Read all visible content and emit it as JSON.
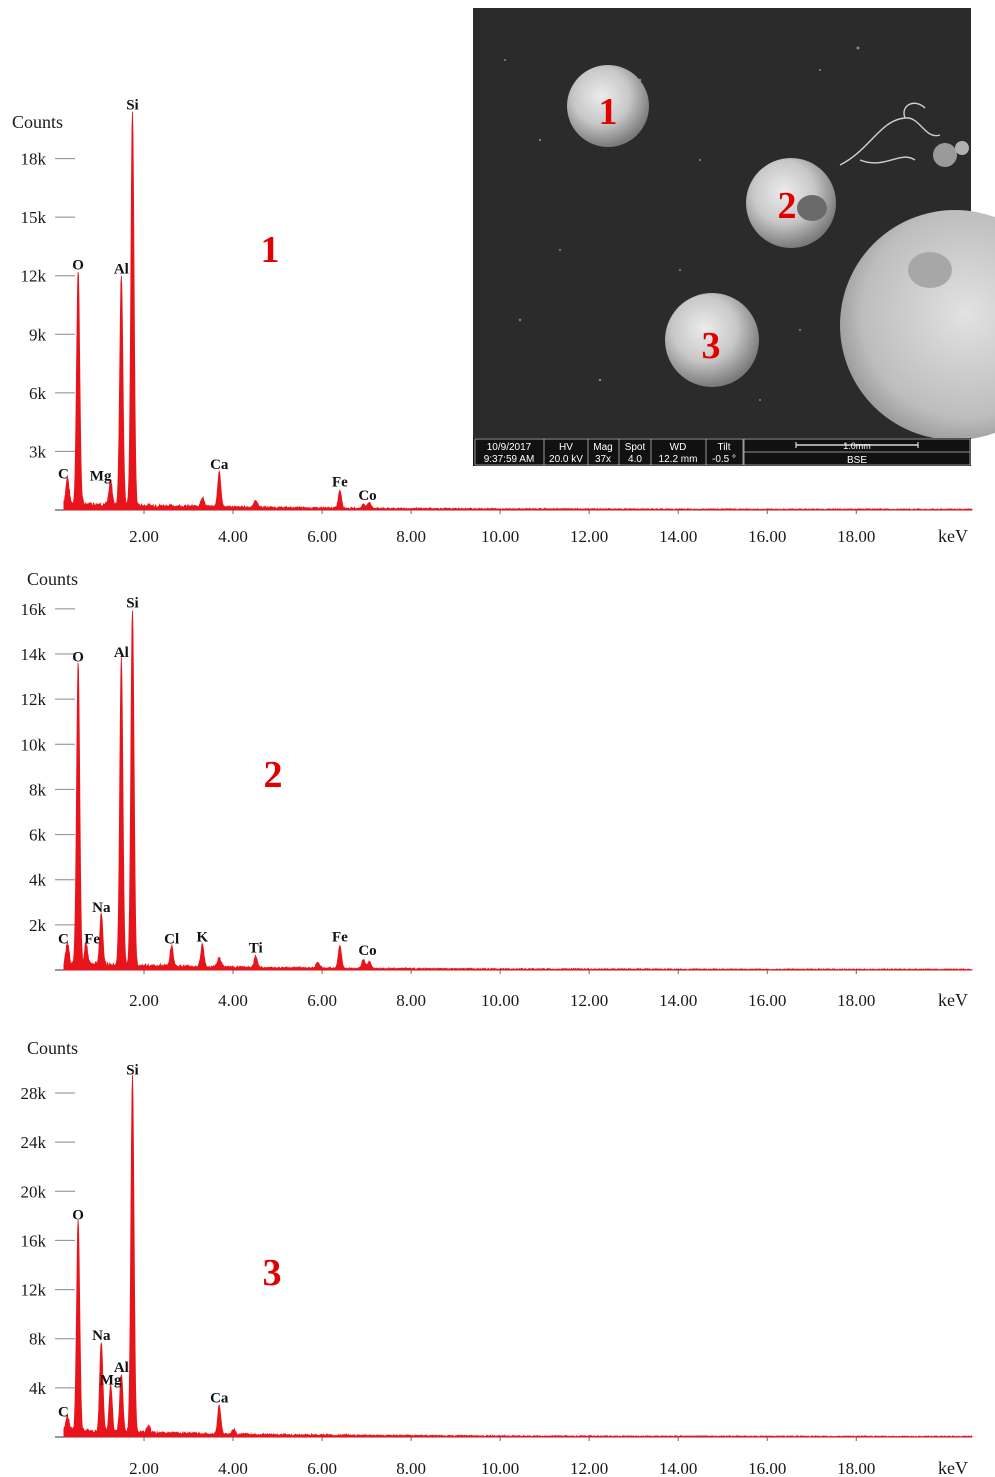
{
  "colors": {
    "spectrum": "#e8141c",
    "label_red": "#e00000",
    "axis": "#333333",
    "sem_bg": "#2b2b2b"
  },
  "chart_data": [
    {
      "type": "line",
      "id": "spectrum-1",
      "panel_label": "1",
      "ylabel": "Counts",
      "xlabel": "keV",
      "x_ticks": [
        "2.00",
        "4.00",
        "6.00",
        "8.00",
        "10.00",
        "12.00",
        "14.00",
        "16.00",
        "18.00"
      ],
      "y_ticks": [
        "3k",
        "6k",
        "9k",
        "12k",
        "15k",
        "18k"
      ],
      "xlim": [
        0,
        20.6
      ],
      "ylim": [
        0,
        21000
      ],
      "peaks": [
        {
          "element": "C",
          "x": 0.28,
          "y": 1300
        },
        {
          "element": "O",
          "x": 0.52,
          "y": 12000
        },
        {
          "element": "Mg",
          "x": 1.25,
          "y": 1200
        },
        {
          "element": "Al",
          "x": 1.49,
          "y": 11800
        },
        {
          "element": "Si",
          "x": 1.74,
          "y": 20200
        },
        {
          "element": "Ca",
          "x": 3.69,
          "y": 1800
        },
        {
          "element": "Fe",
          "x": 6.4,
          "y": 900
        },
        {
          "element": "Co",
          "x": 6.93,
          "y": 200
        }
      ],
      "minor_peaks": [
        {
          "x": 3.31,
          "y": 450
        },
        {
          "x": 4.51,
          "y": 350
        },
        {
          "x": 7.06,
          "y": 300
        }
      ]
    },
    {
      "type": "line",
      "id": "spectrum-2",
      "panel_label": "2",
      "ylabel": "Counts",
      "xlabel": "keV",
      "x_ticks": [
        "2.00",
        "4.00",
        "6.00",
        "8.00",
        "10.00",
        "12.00",
        "14.00",
        "16.00",
        "18.00"
      ],
      "y_ticks": [
        "2k",
        "4k",
        "6k",
        "8k",
        "10k",
        "12k",
        "14k",
        "16k"
      ],
      "xlim": [
        0,
        20.6
      ],
      "ylim": [
        0,
        17500
      ],
      "peaks": [
        {
          "element": "C",
          "x": 0.28,
          "y": 900
        },
        {
          "element": "O",
          "x": 0.52,
          "y": 13400
        },
        {
          "element": "Fe",
          "x": 0.7,
          "y": 900
        },
        {
          "element": "Na",
          "x": 1.04,
          "y": 2300
        },
        {
          "element": "Al",
          "x": 1.49,
          "y": 13600
        },
        {
          "element": "Si",
          "x": 1.74,
          "y": 15800
        },
        {
          "element": "Cl",
          "x": 2.62,
          "y": 900
        },
        {
          "element": "K",
          "x": 3.31,
          "y": 1000
        },
        {
          "element": "Ti",
          "x": 4.51,
          "y": 500
        },
        {
          "element": "Fe",
          "x": 6.4,
          "y": 1000
        },
        {
          "element": "Co",
          "x": 6.93,
          "y": 400
        }
      ],
      "minor_peaks": [
        {
          "x": 3.69,
          "y": 400
        },
        {
          "x": 5.9,
          "y": 250
        },
        {
          "x": 7.06,
          "y": 300
        }
      ]
    },
    {
      "type": "line",
      "id": "spectrum-3",
      "panel_label": "3",
      "ylabel": "Counts",
      "xlabel": "keV",
      "x_ticks": [
        "2.00",
        "4.00",
        "6.00",
        "8.00",
        "10.00",
        "12.00",
        "14.00",
        "16.00",
        "18.00"
      ],
      "y_ticks": [
        "4k",
        "8k",
        "12k",
        "16k",
        "20k",
        "24k",
        "28k"
      ],
      "xlim": [
        0,
        20.6
      ],
      "ylim": [
        0,
        31500
      ],
      "peaks": [
        {
          "element": "C",
          "x": 0.28,
          "y": 1200
        },
        {
          "element": "O",
          "x": 0.52,
          "y": 17200
        },
        {
          "element": "Na",
          "x": 1.04,
          "y": 7400
        },
        {
          "element": "Mg",
          "x": 1.25,
          "y": 3800
        },
        {
          "element": "Al",
          "x": 1.49,
          "y": 4800
        },
        {
          "element": "Si",
          "x": 1.74,
          "y": 29000
        },
        {
          "element": "Ca",
          "x": 3.69,
          "y": 2300
        }
      ],
      "minor_peaks": [
        {
          "x": 2.1,
          "y": 500
        },
        {
          "x": 4.01,
          "y": 400
        }
      ]
    }
  ],
  "sem": {
    "particle_labels": [
      "1",
      "2",
      "3"
    ],
    "info_headers": [
      "10/9/2017",
      "HV",
      "Mag",
      "Spot",
      "WD",
      "Tilt"
    ],
    "info_values": [
      "9:37:59 AM",
      "20.0 kV",
      "37x",
      "4.0",
      "12.2 mm",
      "-0.5 °"
    ],
    "scale_label": "1.0mm",
    "detector": "BSE"
  }
}
